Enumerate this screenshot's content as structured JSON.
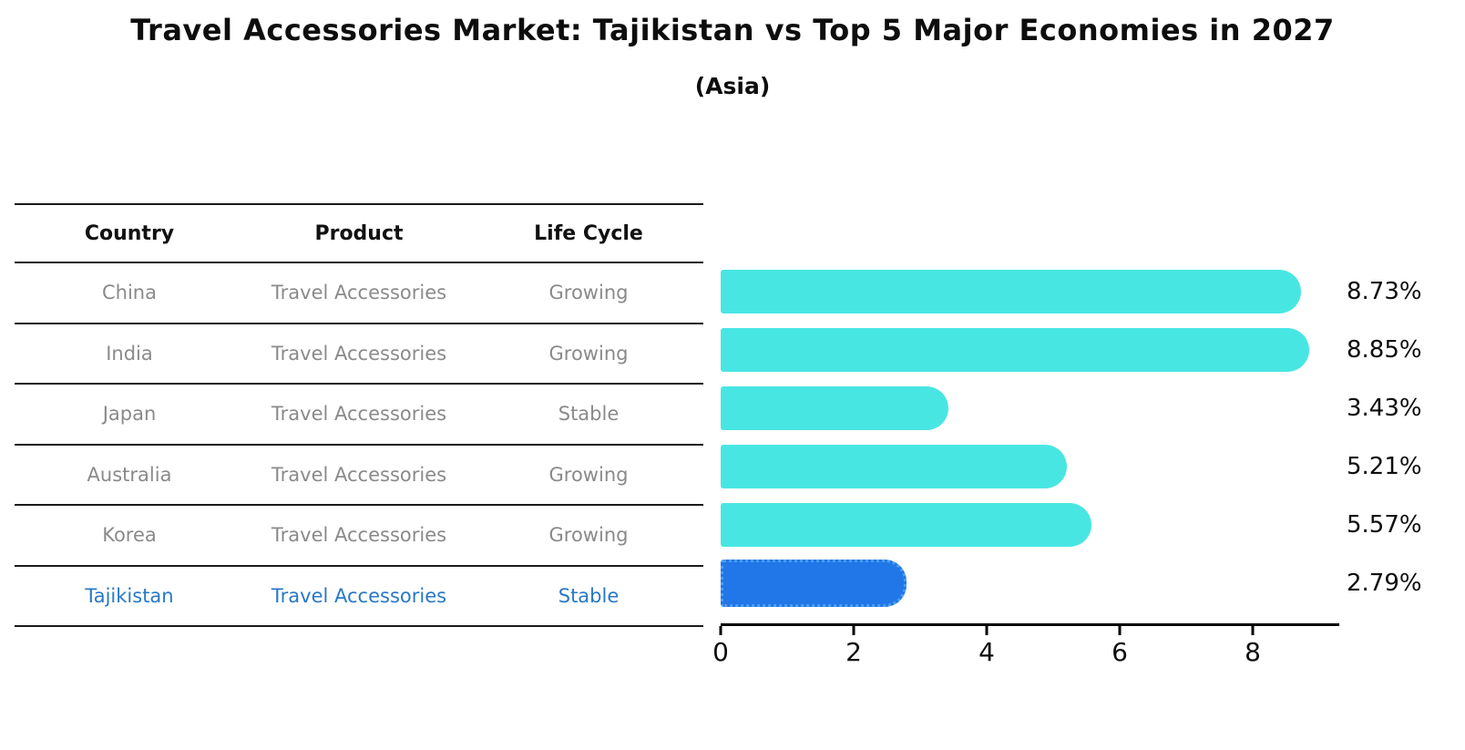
{
  "title": "Travel Accessories Market: Tajikistan vs Top 5 Major Economies in 2027",
  "subtitle": "(Asia)",
  "colors": {
    "bar_cyan": "#48e6e3",
    "bar_blue": "#2176e8",
    "bar_blue_edge": "#4d9ef2",
    "highlight_text": "#2878c8",
    "row_text": "#8a8a8a",
    "header_text": "#111111",
    "axis": "#000000"
  },
  "table": {
    "headers": [
      "Country",
      "Product",
      "Life Cycle"
    ],
    "rows": [
      {
        "country": "China",
        "product": "Travel Accessories",
        "life_cycle": "Growing",
        "highlight": false
      },
      {
        "country": "India",
        "product": "Travel Accessories",
        "life_cycle": "Growing",
        "highlight": false
      },
      {
        "country": "Japan",
        "product": "Travel Accessories",
        "life_cycle": "Stable",
        "highlight": false
      },
      {
        "country": "Australia",
        "product": "Travel Accessories",
        "life_cycle": "Growing",
        "highlight": false
      },
      {
        "country": "Korea",
        "product": "Travel Accessories",
        "life_cycle": "Growing",
        "highlight": false
      },
      {
        "country": "Tajikistan",
        "product": "Travel Accessories",
        "life_cycle": "Stable",
        "highlight": true
      }
    ]
  },
  "chart_data": {
    "type": "bar",
    "orientation": "horizontal",
    "title": "Travel Accessories Market: Tajikistan vs Top 5 Major Economies in 2027",
    "subtitle": "(Asia)",
    "categories": [
      "China",
      "India",
      "Japan",
      "Australia",
      "Korea",
      "Tajikistan"
    ],
    "values": [
      8.73,
      8.85,
      3.43,
      5.21,
      5.57,
      2.79
    ],
    "value_labels": [
      "8.73%",
      "8.85%",
      "3.43%",
      "5.21%",
      "5.57%",
      "2.79%"
    ],
    "highlight_index": 5,
    "xlabel": "",
    "ylabel": "",
    "xlim": [
      0,
      9.3
    ],
    "x_ticks": [
      0,
      2,
      4,
      6,
      8
    ],
    "grid": false,
    "legend": false
  }
}
